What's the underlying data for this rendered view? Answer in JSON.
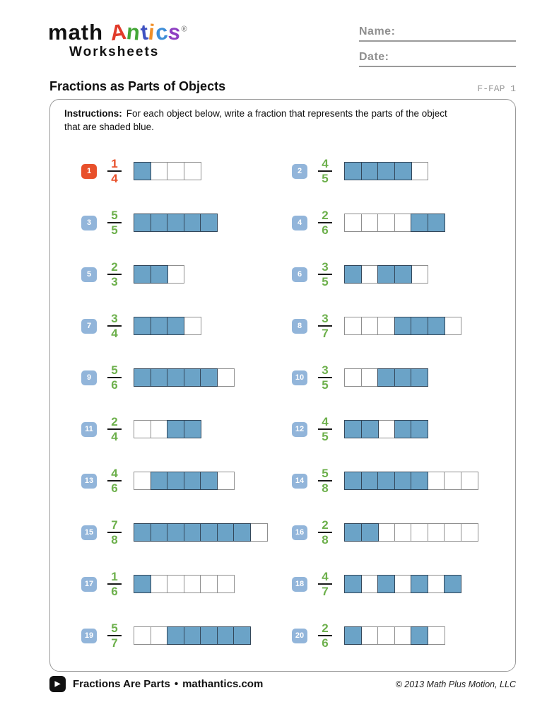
{
  "logo": {
    "word_math": "math",
    "antics_letters": [
      {
        "char": "A",
        "color": "#e13b2a"
      },
      {
        "char": "n",
        "color": "#43a636"
      },
      {
        "char": "t",
        "color": "#3f51c1"
      },
      {
        "char": "i",
        "color": "#f18f26"
      },
      {
        "char": "c",
        "color": "#3e8ed8"
      },
      {
        "char": "s",
        "color": "#8e3fc2"
      }
    ],
    "registered_mark": "®",
    "subtitle": "Worksheets"
  },
  "header_fields": {
    "name_label": "Name:",
    "date_label": "Date:"
  },
  "title": "Fractions as Parts of Objects",
  "doc_code": "F-FAP 1",
  "instructions": {
    "label": "Instructions:",
    "text": "For each object below, write a fraction that represents the parts of the object that are shaded blue."
  },
  "colors": {
    "badge_blue": "#92b5da",
    "accent_orange": "#e8502b",
    "fraction_green": "#6db04c",
    "bar_fill_blue": "#6ba3c7",
    "bar_shaded_border": "#33475a",
    "bar_empty_border": "#8f8f8f"
  },
  "problems": [
    {
      "n": "1",
      "numerator": "1",
      "denominator": "4",
      "cells": [
        1,
        0,
        0,
        0
      ],
      "variant": "example"
    },
    {
      "n": "2",
      "numerator": "4",
      "denominator": "5",
      "cells": [
        1,
        1,
        1,
        1,
        0
      ],
      "variant": "normal"
    },
    {
      "n": "3",
      "numerator": "5",
      "denominator": "5",
      "cells": [
        1,
        1,
        1,
        1,
        1
      ],
      "variant": "normal"
    },
    {
      "n": "4",
      "numerator": "2",
      "denominator": "6",
      "cells": [
        0,
        0,
        0,
        0,
        1,
        1
      ],
      "variant": "normal"
    },
    {
      "n": "5",
      "numerator": "2",
      "denominator": "3",
      "cells": [
        1,
        1,
        0
      ],
      "variant": "normal"
    },
    {
      "n": "6",
      "numerator": "3",
      "denominator": "5",
      "cells": [
        1,
        0,
        1,
        1,
        0
      ],
      "variant": "normal"
    },
    {
      "n": "7",
      "numerator": "3",
      "denominator": "4",
      "cells": [
        1,
        1,
        1,
        0
      ],
      "variant": "normal"
    },
    {
      "n": "8",
      "numerator": "3",
      "denominator": "7",
      "cells": [
        0,
        0,
        0,
        1,
        1,
        1,
        0
      ],
      "variant": "normal"
    },
    {
      "n": "9",
      "numerator": "5",
      "denominator": "6",
      "cells": [
        1,
        1,
        1,
        1,
        1,
        0
      ],
      "variant": "normal"
    },
    {
      "n": "10",
      "numerator": "3",
      "denominator": "5",
      "cells": [
        0,
        0,
        1,
        1,
        1
      ],
      "variant": "normal"
    },
    {
      "n": "11",
      "numerator": "2",
      "denominator": "4",
      "cells": [
        0,
        0,
        1,
        1
      ],
      "variant": "normal"
    },
    {
      "n": "12",
      "numerator": "4",
      "denominator": "5",
      "cells": [
        1,
        1,
        0,
        1,
        1
      ],
      "variant": "normal"
    },
    {
      "n": "13",
      "numerator": "4",
      "denominator": "6",
      "cells": [
        0,
        1,
        1,
        1,
        1,
        0
      ],
      "variant": "normal"
    },
    {
      "n": "14",
      "numerator": "5",
      "denominator": "8",
      "cells": [
        1,
        1,
        1,
        1,
        1,
        0,
        0,
        0
      ],
      "variant": "normal"
    },
    {
      "n": "15",
      "numerator": "7",
      "denominator": "8",
      "cells": [
        1,
        1,
        1,
        1,
        1,
        1,
        1,
        0
      ],
      "variant": "normal"
    },
    {
      "n": "16",
      "numerator": "2",
      "denominator": "8",
      "cells": [
        1,
        1,
        0,
        0,
        0,
        0,
        0,
        0
      ],
      "variant": "normal"
    },
    {
      "n": "17",
      "numerator": "1",
      "denominator": "6",
      "cells": [
        1,
        0,
        0,
        0,
        0,
        0
      ],
      "variant": "normal"
    },
    {
      "n": "18",
      "numerator": "4",
      "denominator": "7",
      "cells": [
        1,
        0,
        1,
        0,
        1,
        0,
        1
      ],
      "variant": "normal"
    },
    {
      "n": "19",
      "numerator": "5",
      "denominator": "7",
      "cells": [
        0,
        0,
        1,
        1,
        1,
        1,
        1
      ],
      "variant": "normal"
    },
    {
      "n": "20",
      "numerator": "2",
      "denominator": "6",
      "cells": [
        1,
        0,
        0,
        0,
        1,
        0
      ],
      "variant": "normal"
    }
  ],
  "footer": {
    "play_icon": "▶",
    "show_title": "Fractions Are Parts",
    "bullet": "•",
    "site": "mathantics.com",
    "copyright": "© 2013 Math Plus Motion, LLC"
  }
}
